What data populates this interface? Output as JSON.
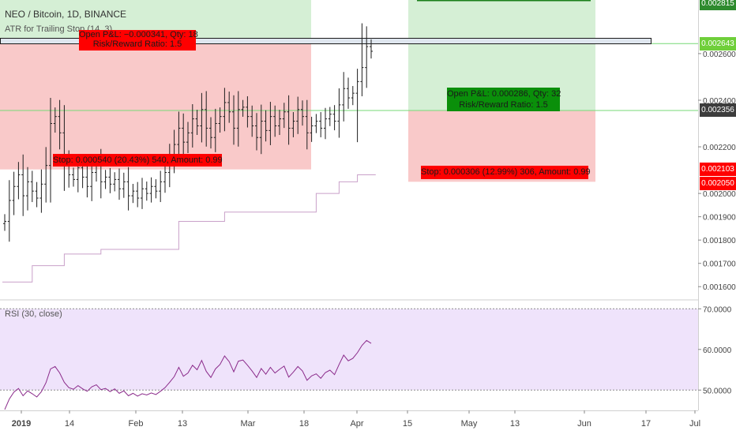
{
  "header": {
    "symbol_title": "NEO / Bitcoin, 1D, BINANCE",
    "indicator_label": "ATR for Trailing Stop (14, 3)",
    "rsi_label": "RSI (30, close)"
  },
  "positions": {
    "short": {
      "pnl_text": "Open P&L: −0.000341, Qty: 18",
      "rr_text": "Risk/Reward Ratio: 1.5",
      "stop_text": "Stop: 0.000540 (20.43%) 540, Amount: 0.99"
    },
    "long": {
      "pnl_text": "Open P&L: 0.000286, Qty: 32",
      "rr_text": "Risk/Reward Ratio: 1.5",
      "stop_text": "Stop: 0.000306 (12.99%) 306, Amount: 0.99"
    }
  },
  "price_chips": [
    {
      "label": "0.002815",
      "value": 0.002815,
      "bg": "#2e8b2e",
      "fg": "#ffffff"
    },
    {
      "label": "0.002643",
      "value": 0.002643,
      "bg": "#6fcf3a",
      "fg": "#ffffff"
    },
    {
      "label": "0.002356",
      "value": 0.002356,
      "bg": "#3c3c3c",
      "fg": "#ffffff"
    },
    {
      "label": "0.002103",
      "value": 0.002103,
      "bg": "#ff0000",
      "fg": "#ffffff"
    },
    {
      "label": "0.002050",
      "value": 0.00205,
      "bg": "#ff0000",
      "fg": "#ffffff"
    }
  ],
  "colors": {
    "candle": "#1e1e1e",
    "atr_line": "#c9a0c9",
    "rsi_line": "#8a2a8a",
    "rsi_band": "#efe3fb",
    "profit_zone": "#d5efd5",
    "loss_zone": "#f9c9c9",
    "take_profit_line": "#77d977",
    "label_red": "#ff0000",
    "label_green": "#0a8f0a"
  },
  "chart_data": [
    {
      "type": "candlestick",
      "title": "NEO / Bitcoin, 1D, BINANCE",
      "ylim": [
        0.00155,
        0.00283
      ],
      "y_ticks": [
        0.0016,
        0.0017,
        0.0018,
        0.0019,
        0.002,
        0.0022,
        0.0024,
        0.0026
      ],
      "y_tick_labels": [
        "0.001600",
        "0.001700",
        "0.001800",
        "0.001900",
        "0.002000",
        "0.002200",
        "0.002400",
        "0.002600"
      ],
      "x_tick_labels": [
        "2019",
        "14",
        "Feb",
        "13",
        "Mar",
        "18",
        "Apr",
        "15",
        "May",
        "13",
        "Jun",
        "17",
        "Jul"
      ],
      "date_range": [
        "2019-01-01",
        "2019-04-06"
      ],
      "close_values": [
        0.00188,
        0.00197,
        0.00203,
        0.00208,
        0.00199,
        0.00205,
        0.00201,
        0.00198,
        0.00204,
        0.00212,
        0.0023,
        0.00233,
        0.00226,
        0.00213,
        0.00208,
        0.00206,
        0.00211,
        0.00207,
        0.00203,
        0.00209,
        0.00212,
        0.00205,
        0.00207,
        0.00204,
        0.00206,
        0.00202,
        0.00205,
        0.00199,
        0.00201,
        0.00198,
        0.00202,
        0.002,
        0.00203,
        0.00201,
        0.00205,
        0.00209,
        0.00215,
        0.00221,
        0.00228,
        0.00222,
        0.00226,
        0.00232,
        0.00229,
        0.00236,
        0.00228,
        0.00224,
        0.0023,
        0.00233,
        0.00239,
        0.00235,
        0.00228,
        0.00236,
        0.00237,
        0.00233,
        0.00229,
        0.00224,
        0.00231,
        0.00227,
        0.00233,
        0.00229,
        0.00232,
        0.00235,
        0.00228,
        0.00231,
        0.00236,
        0.00233,
        0.00226,
        0.00229,
        0.00231,
        0.00228,
        0.00232,
        0.00234,
        0.00231,
        0.00238,
        0.00245,
        0.00241,
        0.00243,
        0.00248,
        0.00254,
        0.00263,
        0.00261
      ],
      "annotations": [
        {
          "text": "Open P&L: −0.000341, Qty: 18"
        },
        {
          "text": "Risk/Reward Ratio: 1.5"
        },
        {
          "text": "Stop: 0.000540 (20.43%) 540, Amount: 0.99"
        },
        {
          "text": "Open P&L: 0.000286, Qty: 32"
        },
        {
          "text": "Stop: 0.000306 (12.99%) 306, Amount: 0.99"
        }
      ],
      "series": [
        {
          "name": "ATR for Trailing Stop (14, 3)",
          "type": "step-line",
          "values": [
            0.00162,
            0.00162,
            0.00162,
            0.00162,
            0.00162,
            0.00162,
            0.00169,
            0.00169,
            0.00169,
            0.00169,
            0.00169,
            0.00169,
            0.00169,
            0.00174,
            0.00174,
            0.00174,
            0.00174,
            0.00174,
            0.00174,
            0.00174,
            0.00174,
            0.00176,
            0.00176,
            0.00176,
            0.00176,
            0.00176,
            0.00176,
            0.00176,
            0.00176,
            0.00176,
            0.00176,
            0.00176,
            0.00176,
            0.00176,
            0.00176,
            0.00176,
            0.00176,
            0.00176,
            0.00188,
            0.00188,
            0.00188,
            0.00188,
            0.00188,
            0.00188,
            0.00188,
            0.00188,
            0.00188,
            0.00188,
            0.00192,
            0.00192,
            0.00192,
            0.00192,
            0.00192,
            0.00192,
            0.00192,
            0.00192,
            0.00192,
            0.00192,
            0.00192,
            0.00192,
            0.00192,
            0.00192,
            0.00192,
            0.00192,
            0.00192,
            0.00192,
            0.00192,
            0.00192,
            0.002,
            0.002,
            0.002,
            0.002,
            0.002,
            0.00205,
            0.00205,
            0.00205,
            0.00205,
            0.00208,
            0.00208,
            0.00208,
            0.00208
          ]
        }
      ]
    },
    {
      "type": "line",
      "title": "RSI (30, close)",
      "ylim": [
        45,
        72
      ],
      "y_ticks": [
        50,
        60,
        70
      ],
      "y_tick_labels": [
        "50.0000",
        "60.0000",
        "70.0000"
      ],
      "bands": [
        50,
        70
      ],
      "series": [
        {
          "name": "RSI (30, close)",
          "values": [
            45.2,
            47.8,
            49.5,
            50.4,
            48.6,
            49.8,
            49.1,
            48.3,
            49.6,
            51.8,
            55.2,
            55.8,
            54.2,
            51.9,
            50.6,
            50.2,
            51.1,
            50.3,
            49.7,
            50.8,
            51.3,
            50.1,
            50.4,
            49.6,
            50.3,
            49.2,
            49.8,
            48.6,
            49.2,
            48.5,
            49.1,
            48.8,
            49.3,
            48.9,
            49.7,
            50.6,
            51.9,
            53.3,
            55.6,
            53.4,
            54.2,
            56.1,
            55.0,
            57.3,
            54.6,
            53.1,
            55.2,
            56.3,
            58.4,
            57.0,
            54.5,
            57.1,
            57.4,
            56.1,
            54.7,
            53.1,
            55.3,
            53.9,
            55.6,
            54.2,
            55.1,
            55.9,
            53.2,
            54.4,
            55.8,
            54.7,
            52.4,
            53.5,
            54.0,
            52.9,
            54.3,
            54.9,
            53.8,
            56.3,
            58.6,
            57.2,
            57.8,
            59.2,
            61.0,
            62.2,
            61.5
          ]
        }
      ]
    }
  ]
}
